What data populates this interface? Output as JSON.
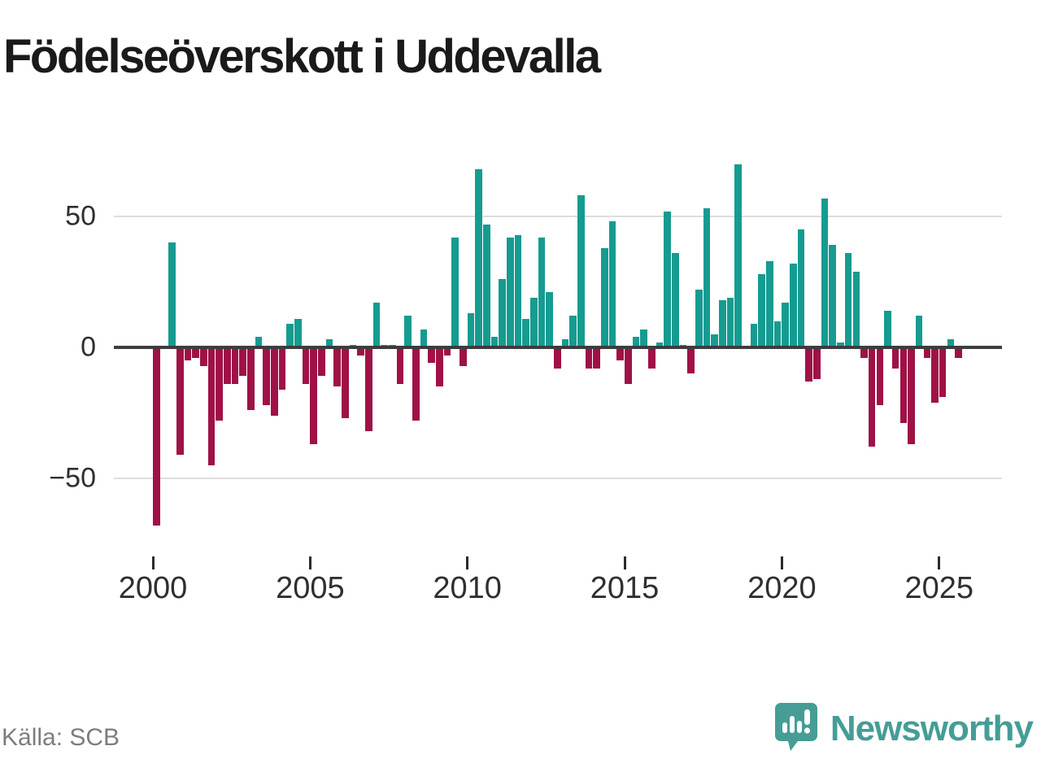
{
  "title": "Födelseöverskott i Uddevalla",
  "source": "Källa: SCB",
  "logo": {
    "text": "Newsworthy",
    "icon": "bar-chart-speech-bubble"
  },
  "colors": {
    "positive_bar": "#169b90",
    "negative_bar": "#9f1147",
    "axis_line": "#3d3d3d",
    "gridline": "#dddddd",
    "title_text": "#1a1a1a",
    "tick_text": "#2f2f2f",
    "source_text": "#7d7d7d",
    "logo_teal": "#459d96"
  },
  "chart_data": {
    "type": "bar",
    "title": "Födelseöverskott i Uddevalla",
    "frequency": "quarterly",
    "start_year": 2000,
    "start_quarter": 1,
    "end_year": 2025,
    "end_quarter": 3,
    "ylim": [
      -75,
      75
    ],
    "grid": "horizontal",
    "legend": "none",
    "y_ticks": [
      {
        "value": 50,
        "label": "50"
      },
      {
        "value": 0,
        "label": "0"
      },
      {
        "value": -50,
        "label": "−50"
      }
    ],
    "x_ticks": [
      {
        "value": 2000,
        "label": "2000"
      },
      {
        "value": 2005,
        "label": "2005"
      },
      {
        "value": 2010,
        "label": "2010"
      },
      {
        "value": 2015,
        "label": "2015"
      },
      {
        "value": 2020,
        "label": "2020"
      },
      {
        "value": 2025,
        "label": "2025"
      }
    ],
    "values": [
      -68,
      0,
      40,
      -41,
      -5,
      -4,
      -7,
      -45,
      -28,
      -14,
      -14,
      -11,
      -24,
      4,
      -22,
      -26,
      -16,
      9,
      11,
      -14,
      -37,
      -11,
      3,
      -15,
      -27,
      1,
      -3,
      -32,
      17,
      1,
      1,
      -14,
      12,
      -28,
      7,
      -6,
      -15,
      -3,
      42,
      -7,
      13,
      68,
      47,
      4,
      26,
      42,
      43,
      11,
      19,
      42,
      21,
      -8,
      3,
      12,
      58,
      -8,
      -8,
      38,
      48,
      -5,
      -14,
      4,
      7,
      -8,
      2,
      52,
      36,
      1,
      -10,
      22,
      53,
      5,
      18,
      19,
      70,
      0,
      9,
      28,
      33,
      10,
      17,
      32,
      45,
      -13,
      -12,
      57,
      39,
      2,
      36,
      29,
      -4,
      -38,
      -22,
      14,
      -8,
      -29,
      -37,
      12,
      -4,
      -21,
      -19,
      3,
      -4
    ]
  }
}
